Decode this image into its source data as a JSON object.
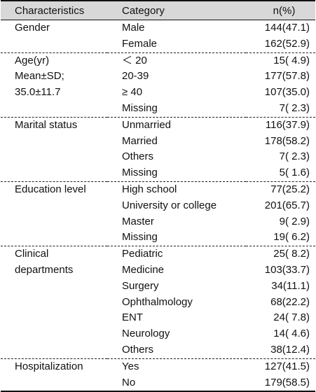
{
  "header": {
    "characteristics": "Characteristics",
    "category": "Category",
    "n_percent": "n(%)"
  },
  "rows": [
    {
      "char": "Gender",
      "cat": "Male",
      "num": "144(47.1)"
    },
    {
      "char": "",
      "cat": "Female",
      "num": "162(52.9)"
    },
    {
      "char": "Age(yr)",
      "cat": "＜ 20",
      "num": "15( 4.9)"
    },
    {
      "char": "Mean±SD;",
      "cat": "20-39",
      "num": "177(57.8)"
    },
    {
      "char": "35.0±11.7",
      "cat": "≥ 40",
      "num": "107(35.0)"
    },
    {
      "char": "",
      "cat": "Missing",
      "num": "7( 2.3)"
    },
    {
      "char": "Marital  status",
      "cat": "Unmarried",
      "num": "116(37.9)"
    },
    {
      "char": "",
      "cat": "Married",
      "num": "178(58.2)"
    },
    {
      "char": "",
      "cat": "Others",
      "num": "7( 2.3)"
    },
    {
      "char": "",
      "cat": "Missing",
      "num": "5( 1.6)"
    },
    {
      "char": "Education  level",
      "cat": "High  school",
      "num": "77(25.2)"
    },
    {
      "char": "",
      "cat": "University  or  college",
      "num": "201(65.7)"
    },
    {
      "char": "",
      "cat": "Master",
      "num": "9( 2.9)"
    },
    {
      "char": "",
      "cat": "Missing",
      "num": "19( 6.2)"
    },
    {
      "char": "Clinical",
      "cat": "Pediatric",
      "num": "25( 8.2)"
    },
    {
      "char": "departments",
      "cat": "Medicine",
      "num": "103(33.7)"
    },
    {
      "char": "",
      "cat": "Surgery",
      "num": "34(11.1)"
    },
    {
      "char": "",
      "cat": "Ophthalmology",
      "num": "68(22.2)"
    },
    {
      "char": "",
      "cat": "ENT",
      "num": "24( 7.8)"
    },
    {
      "char": "",
      "cat": "Neurology",
      "num": "14( 4.6)"
    },
    {
      "char": "",
      "cat": "Others",
      "num": "38(12.4)"
    },
    {
      "char": "Hospitalization",
      "cat": "Yes",
      "num": "127(41.5)"
    },
    {
      "char": "",
      "cat": "No",
      "num": "179(58.5)"
    }
  ]
}
